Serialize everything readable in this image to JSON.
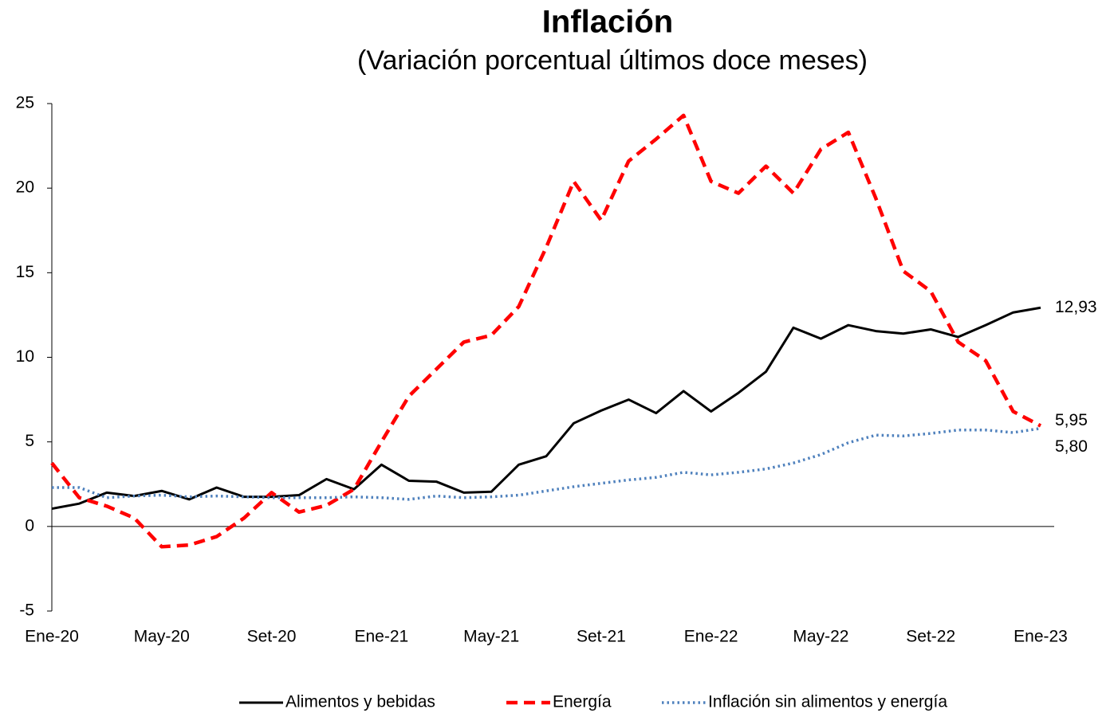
{
  "chart_data": {
    "type": "line",
    "title": "Inflación",
    "subtitle": "(Variación porcentual últimos doce meses)",
    "categories": [
      "Ene-20",
      null,
      null,
      null,
      "May-20",
      null,
      null,
      null,
      "Set-20",
      null,
      null,
      null,
      "Ene-21",
      null,
      null,
      null,
      "May-21",
      null,
      null,
      null,
      "Set-21",
      null,
      null,
      null,
      "Ene-22",
      null,
      null,
      null,
      "May-22",
      null,
      null,
      null,
      "Set-22",
      null,
      null,
      null,
      "Ene-23"
    ],
    "series": [
      {
        "name": "Alimentos y bebidas",
        "color": "#000000",
        "style": "solid",
        "values": [
          1.05,
          1.35,
          2.0,
          1.8,
          2.1,
          1.6,
          2.3,
          1.75,
          1.75,
          1.85,
          2.8,
          2.2,
          3.65,
          2.7,
          2.65,
          2.0,
          2.05,
          3.65,
          4.15,
          6.1,
          6.85,
          7.5,
          6.7,
          8.0,
          6.8,
          7.9,
          9.15,
          11.75,
          11.1,
          11.9,
          11.55,
          11.4,
          11.65,
          11.2,
          11.9,
          12.65,
          12.93
        ],
        "value_labels": [
          null,
          null,
          null,
          null,
          null,
          null,
          null,
          null,
          null,
          null,
          null,
          null,
          null,
          null,
          null,
          null,
          null,
          null,
          null,
          null,
          null,
          null,
          null,
          null,
          null,
          null,
          null,
          null,
          null,
          null,
          null,
          null,
          null,
          null,
          null,
          null,
          "12,93"
        ]
      },
      {
        "name": "Energía",
        "color": "#ff0000",
        "style": "dashed",
        "values": [
          3.75,
          1.7,
          1.2,
          0.5,
          -1.2,
          -1.1,
          -0.6,
          0.5,
          2.0,
          0.85,
          1.25,
          2.2,
          5.0,
          7.7,
          9.3,
          10.9,
          11.3,
          13.0,
          16.5,
          20.4,
          18.1,
          21.6,
          22.9,
          24.3,
          20.4,
          19.7,
          21.3,
          19.7,
          22.3,
          23.3,
          19.4,
          15.1,
          13.9,
          10.9,
          9.8,
          6.8,
          5.95
        ],
        "value_labels": [
          null,
          null,
          null,
          null,
          null,
          null,
          null,
          null,
          null,
          null,
          null,
          null,
          null,
          null,
          null,
          null,
          null,
          null,
          null,
          null,
          null,
          null,
          null,
          null,
          null,
          null,
          null,
          null,
          null,
          null,
          null,
          null,
          null,
          null,
          null,
          null,
          "5,95"
        ]
      },
      {
        "name": "Inflación sin alimentos y energía",
        "color": "#4f81bd",
        "style": "dotted",
        "values": [
          2.3,
          2.3,
          1.7,
          1.8,
          1.85,
          1.75,
          1.8,
          1.75,
          1.7,
          1.7,
          1.7,
          1.75,
          1.7,
          1.6,
          1.8,
          1.7,
          1.75,
          1.85,
          2.1,
          2.35,
          2.55,
          2.75,
          2.9,
          3.2,
          3.05,
          3.2,
          3.4,
          3.75,
          4.25,
          4.95,
          5.4,
          5.35,
          5.5,
          5.7,
          5.7,
          5.55,
          5.8
        ],
        "value_labels": [
          null,
          null,
          null,
          null,
          null,
          null,
          null,
          null,
          null,
          null,
          null,
          null,
          null,
          null,
          null,
          null,
          null,
          null,
          null,
          null,
          null,
          null,
          null,
          null,
          null,
          null,
          null,
          null,
          null,
          null,
          null,
          null,
          null,
          null,
          null,
          null,
          "5,80"
        ]
      }
    ],
    "ylim": [
      -5,
      25
    ],
    "yticks": [
      -5,
      0,
      5,
      10,
      15,
      20,
      25
    ],
    "grid": false,
    "legend": "bottom"
  }
}
